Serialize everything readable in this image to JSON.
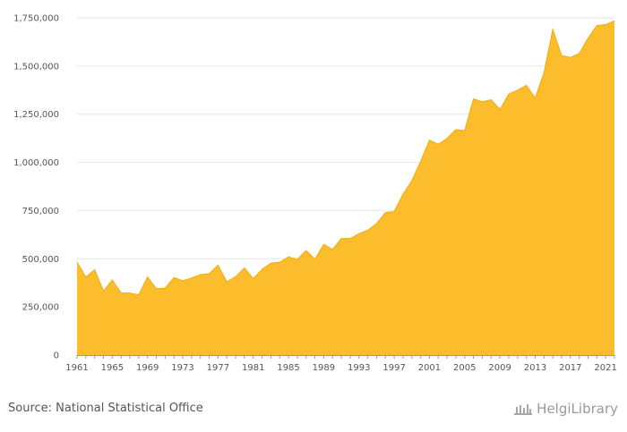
{
  "source": {
    "text": "Source: National Statistical Office"
  },
  "logo": {
    "part1": "Helgi",
    "part2": "Library",
    "icon": "library-building-icon"
  },
  "colors": {
    "area": "#fbbd2c",
    "line": "#f0ac10",
    "grid": "#e6e6e6",
    "axis": "#999999"
  },
  "chart_data": {
    "type": "area",
    "x": [
      1961,
      1962,
      1963,
      1964,
      1965,
      1966,
      1967,
      1968,
      1969,
      1970,
      1971,
      1972,
      1973,
      1974,
      1975,
      1976,
      1977,
      1978,
      1979,
      1980,
      1981,
      1982,
      1983,
      1984,
      1985,
      1986,
      1987,
      1988,
      1989,
      1990,
      1991,
      1992,
      1993,
      1994,
      1995,
      1996,
      1997,
      1998,
      1999,
      2000,
      2001,
      2002,
      2003,
      2004,
      2005,
      2006,
      2007,
      2008,
      2009,
      2010,
      2011,
      2012,
      2013,
      2014,
      2015,
      2016,
      2017,
      2018,
      2019,
      2020,
      2021,
      2022
    ],
    "series": [
      {
        "values": [
          482000,
          405000,
          443000,
          332000,
          390000,
          322000,
          322000,
          312000,
          405000,
          345000,
          347000,
          402000,
          386000,
          400000,
          418000,
          422000,
          467000,
          380000,
          407000,
          452000,
          397000,
          445000,
          477000,
          482000,
          510000,
          497000,
          543000,
          498000,
          575000,
          548000,
          605000,
          605000,
          630000,
          648000,
          682000,
          740000,
          745000,
          835000,
          905000,
          1005000,
          1115000,
          1095000,
          1125000,
          1170000,
          1165000,
          1330000,
          1315000,
          1325000,
          1275000,
          1355000,
          1375000,
          1400000,
          1335000,
          1465000,
          1690000,
          1555000,
          1545000,
          1565000,
          1645000,
          1710000,
          1715000,
          1735000
        ]
      }
    ],
    "x_ticks": [
      "1961",
      "1965",
      "1969",
      "1973",
      "1977",
      "1981",
      "1985",
      "1989",
      "1993",
      "1997",
      "2001",
      "2005",
      "2009",
      "2013",
      "2017",
      "2021"
    ],
    "y_ticks": [
      "0",
      "250,000",
      "500,000",
      "750,000",
      "1,000,000",
      "1,250,000",
      "1,500,000",
      "1,750,000"
    ],
    "ylim": [
      0,
      1750000
    ],
    "xlim": [
      1961,
      2022
    ],
    "grid": true,
    "legend": "none"
  }
}
